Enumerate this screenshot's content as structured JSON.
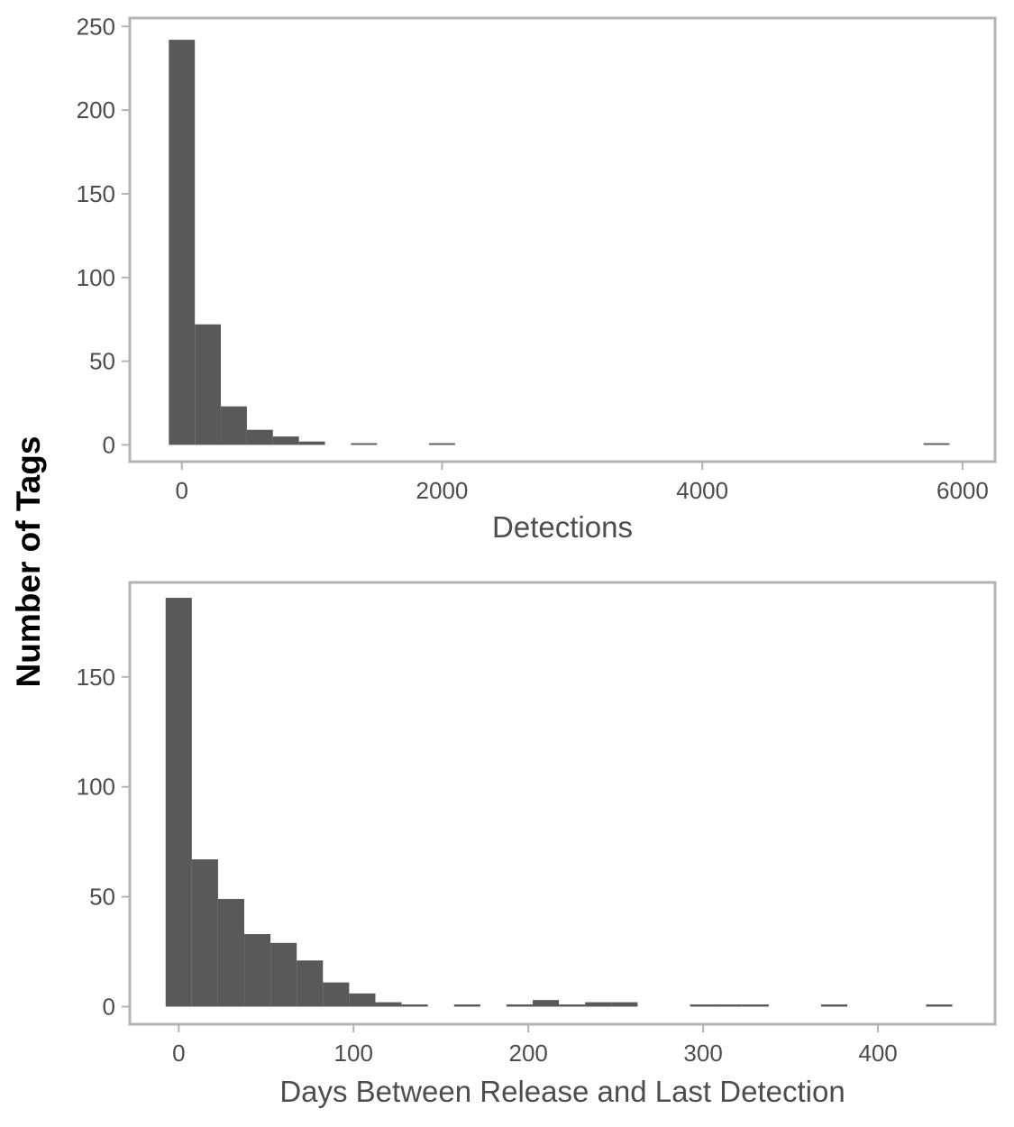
{
  "figure": {
    "ylabel": "Number of Tags"
  },
  "colors": {
    "bar_fill": "#595959",
    "panel_border": "#b3b3b3",
    "tick_text": "#4d4d4d",
    "axis_title_text": "#4d4d4d",
    "y_title_text": "#000000"
  },
  "chart_data": [
    {
      "type": "bar",
      "title": "",
      "xlabel": "Detections",
      "ylabel": "Number of Tags",
      "xlim": [
        -400,
        6250
      ],
      "ylim": [
        -10,
        255
      ],
      "xticks": [
        0,
        2000,
        4000,
        6000
      ],
      "xtick_labels": [
        "0",
        "2000",
        "4000",
        "6000"
      ],
      "yticks": [
        0,
        50,
        100,
        150,
        200,
        250
      ],
      "ytick_labels": [
        "0",
        "50",
        "100",
        "150",
        "200",
        "250"
      ],
      "grid": false,
      "bins": [
        {
          "x0": -100,
          "x1": 100,
          "value": 242
        },
        {
          "x0": 100,
          "x1": 300,
          "value": 72
        },
        {
          "x0": 300,
          "x1": 500,
          "value": 23
        },
        {
          "x0": 500,
          "x1": 700,
          "value": 9
        },
        {
          "x0": 700,
          "x1": 900,
          "value": 5
        },
        {
          "x0": 900,
          "x1": 1100,
          "value": 2
        },
        {
          "x0": 1300,
          "x1": 1500,
          "value": 1
        },
        {
          "x0": 1900,
          "x1": 2100,
          "value": 1
        },
        {
          "x0": 5700,
          "x1": 5900,
          "value": 1
        }
      ]
    },
    {
      "type": "bar",
      "title": "",
      "xlabel": "Days Between Release and Last Detection",
      "ylabel": "Number of Tags",
      "xlim": [
        -28,
        467
      ],
      "ylim": [
        -8,
        193
      ],
      "xticks": [
        0,
        100,
        200,
        300,
        400
      ],
      "xtick_labels": [
        "0",
        "100",
        "200",
        "300",
        "400"
      ],
      "yticks": [
        0,
        50,
        100,
        150
      ],
      "ytick_labels": [
        "0",
        "50",
        "100",
        "150"
      ],
      "grid": false,
      "bins": [
        {
          "x0": -7.5,
          "x1": 7.5,
          "value": 186
        },
        {
          "x0": 7.5,
          "x1": 22.5,
          "value": 67
        },
        {
          "x0": 22.5,
          "x1": 37.5,
          "value": 49
        },
        {
          "x0": 37.5,
          "x1": 52.5,
          "value": 33
        },
        {
          "x0": 52.5,
          "x1": 67.5,
          "value": 29
        },
        {
          "x0": 67.5,
          "x1": 82.5,
          "value": 21
        },
        {
          "x0": 82.5,
          "x1": 97.5,
          "value": 11
        },
        {
          "x0": 97.5,
          "x1": 112.5,
          "value": 6
        },
        {
          "x0": 112.5,
          "x1": 127.5,
          "value": 2
        },
        {
          "x0": 127.5,
          "x1": 142.5,
          "value": 1
        },
        {
          "x0": 157.5,
          "x1": 172.5,
          "value": 1
        },
        {
          "x0": 187.5,
          "x1": 202.5,
          "value": 1
        },
        {
          "x0": 202.5,
          "x1": 217.5,
          "value": 3
        },
        {
          "x0": 217.5,
          "x1": 232.5,
          "value": 1
        },
        {
          "x0": 232.5,
          "x1": 247.5,
          "value": 2
        },
        {
          "x0": 247.5,
          "x1": 262.5,
          "value": 2
        },
        {
          "x0": 292.5,
          "x1": 307.5,
          "value": 1
        },
        {
          "x0": 307.5,
          "x1": 322.5,
          "value": 1
        },
        {
          "x0": 322.5,
          "x1": 337.5,
          "value": 1
        },
        {
          "x0": 367.5,
          "x1": 382.5,
          "value": 1
        },
        {
          "x0": 427.5,
          "x1": 442.5,
          "value": 1
        }
      ]
    }
  ]
}
